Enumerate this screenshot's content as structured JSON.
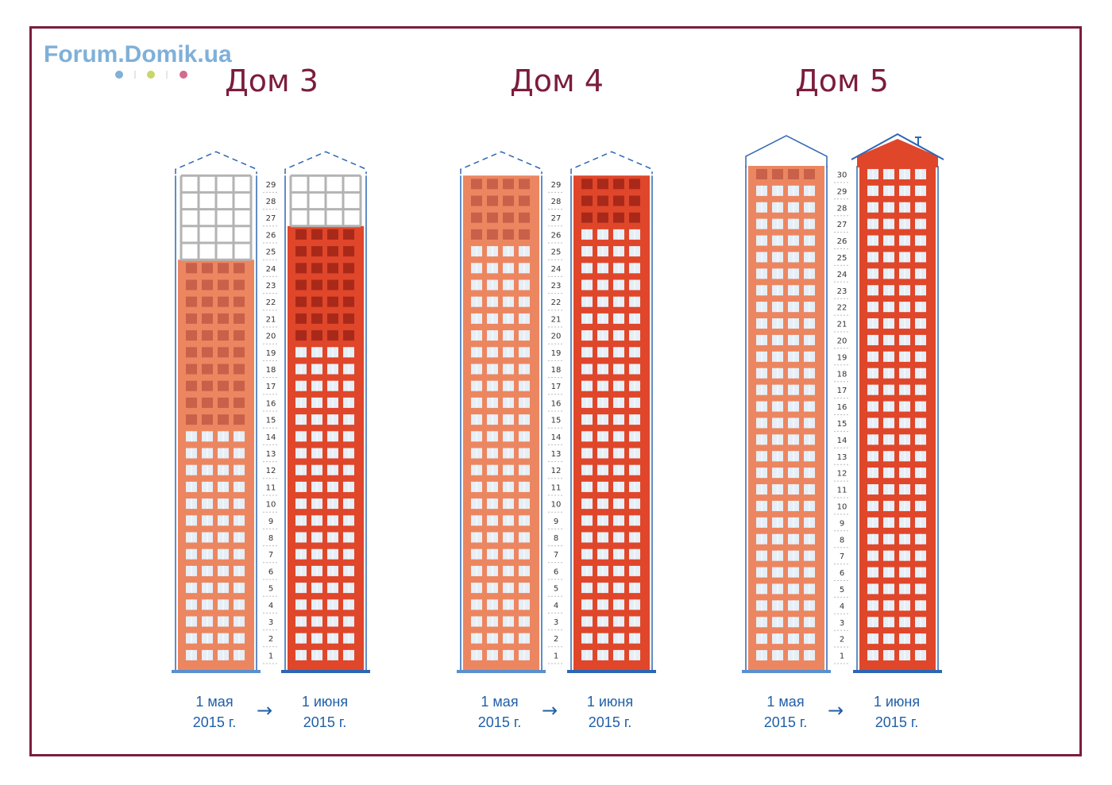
{
  "logo": {
    "text": "Forum.Domik.ua",
    "dot_colors": [
      "#7fb0d8",
      "#c9d66a",
      "#d46a8f"
    ]
  },
  "colors": {
    "frame": "#7b1d3c",
    "title": "#7b1d3c",
    "date_text": "#1f5fa8",
    "may_facade": "#ec8660",
    "june_facade": "#e0462a",
    "may_done_window": "#c9604a",
    "june_done_window": "#a8291a",
    "glass_window": "#e6eef6",
    "outline": "#2e66b4",
    "unbuilt_grid": "#b3b3b3",
    "base": "#5b8fcf"
  },
  "arrow_symbol": "→",
  "houses": [
    {
      "title": "Дом 3",
      "total_floors": 29,
      "may": {
        "date_line1": "1 мая",
        "date_line2": "2015 г.",
        "built_floors": 24,
        "glazed_floors": 14,
        "roof": "dashed"
      },
      "june": {
        "date_line1": "1 июня",
        "date_line2": "2015 г.",
        "built_floors": 26,
        "glazed_floors": 19,
        "roof": "dashed"
      }
    },
    {
      "title": "Дом 4",
      "total_floors": 29,
      "may": {
        "date_line1": "1 мая",
        "date_line2": "2015 г.",
        "built_floors": 29,
        "glazed_floors": 25,
        "roof": "dashed"
      },
      "june": {
        "date_line1": "1 июня",
        "date_line2": "2015 г.",
        "built_floors": 29,
        "glazed_floors": 26,
        "roof": "dashed"
      }
    },
    {
      "title": "Дом 5",
      "total_floors": 30,
      "may": {
        "date_line1": "1 мая",
        "date_line2": "2015 г.",
        "built_floors": 30,
        "glazed_floors": 29,
        "roof": "outline"
      },
      "june": {
        "date_line1": "1 июня",
        "date_line2": "2015 г.",
        "built_floors": 30,
        "glazed_floors": 30,
        "roof": "filled"
      }
    }
  ]
}
